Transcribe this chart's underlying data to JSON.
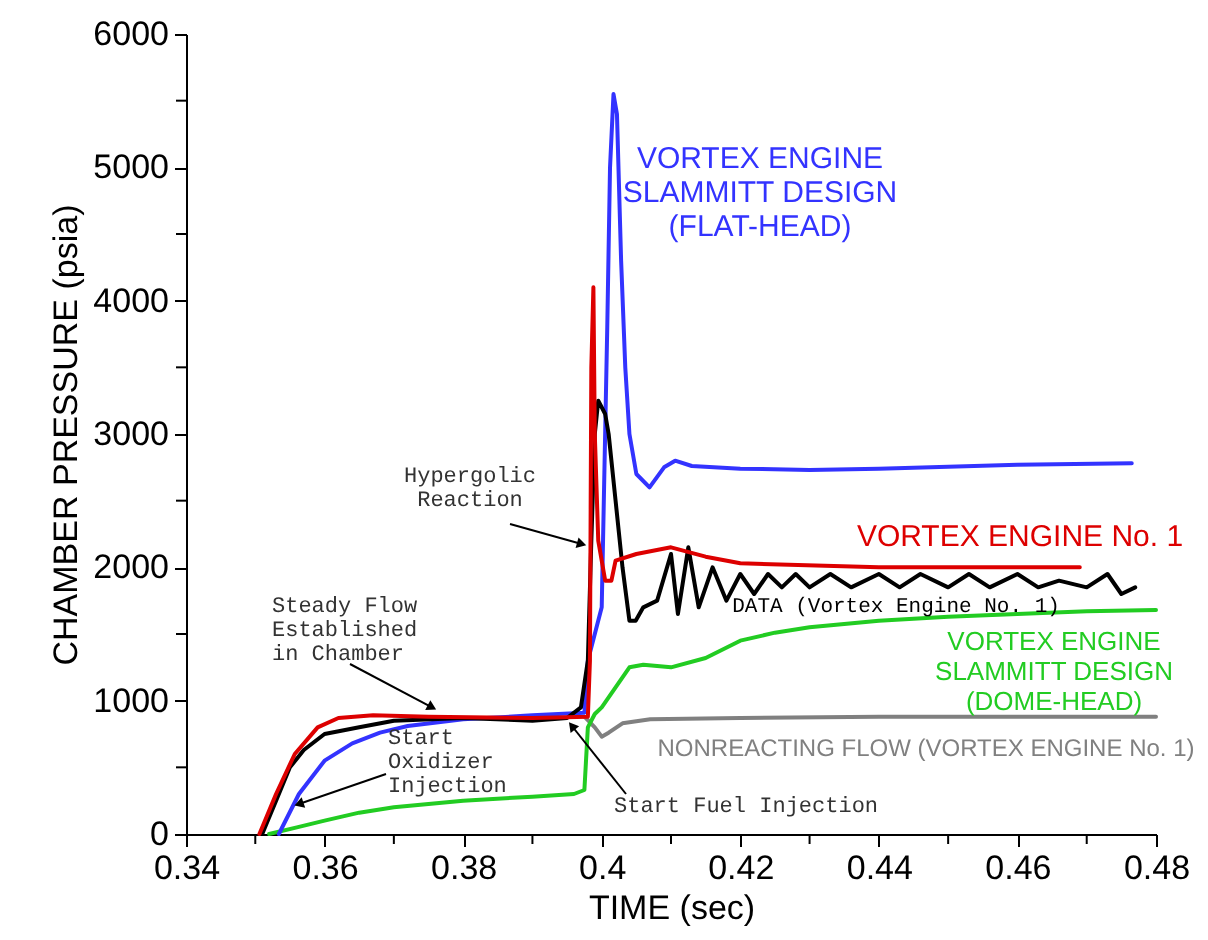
{
  "chart_data": {
    "type": "line",
    "xlabel": "TIME (sec)",
    "ylabel": "CHAMBER PRESSURE (psia)",
    "xlim": [
      0.34,
      0.48
    ],
    "ylim": [
      0,
      6000
    ],
    "xticks": [
      0.34,
      {
        "value": 0.35,
        "label": null
      },
      0.36,
      {
        "value": 0.37,
        "label": null
      },
      0.38,
      {
        "value": 0.39,
        "label": null
      },
      {
        "value": 0.4,
        "label": "0.4"
      },
      {
        "value": 0.41,
        "label": null
      },
      0.42,
      {
        "value": 0.43,
        "label": null
      },
      0.44,
      {
        "value": 0.45,
        "label": null
      },
      0.46,
      {
        "value": 0.47,
        "label": null
      },
      0.48
    ],
    "yticks": [
      0,
      {
        "value": 500,
        "label": null
      },
      1000,
      {
        "value": 1500,
        "label": null
      },
      2000,
      {
        "value": 2500,
        "label": null
      },
      3000,
      {
        "value": 3500,
        "label": null
      },
      4000,
      {
        "value": 4500,
        "label": null
      },
      5000,
      {
        "value": 5500,
        "label": null
      },
      6000
    ],
    "grid": false,
    "legend": false,
    "marker": "none",
    "line_style": "solid",
    "series": [
      {
        "name": "NONREACTING FLOW (VORTEX ENGINE No. 1)",
        "color": "#808080",
        "x": [
          0.3975,
          0.399,
          0.4,
          0.401,
          0.403,
          0.407,
          0.42,
          0.44,
          0.46,
          0.48
        ],
        "values": [
          880,
          800,
          730,
          760,
          830,
          860,
          870,
          880,
          880,
          880
        ]
      },
      {
        "name": "VORTEX ENGINE\nSLAMMITT DESIGN\n(DOME-HEAD)",
        "color": "#22cc22",
        "x": [
          0.352,
          0.356,
          0.36,
          0.365,
          0.37,
          0.38,
          0.39,
          0.396,
          0.3975,
          0.398,
          0.399,
          0.4,
          0.402,
          0.404,
          0.406,
          0.41,
          0.415,
          0.42,
          0.425,
          0.43,
          0.44,
          0.45,
          0.46,
          0.47,
          0.48
        ],
        "values": [
          0,
          50,
          100,
          160,
          200,
          250,
          280,
          300,
          330,
          800,
          900,
          950,
          1100,
          1250,
          1270,
          1250,
          1320,
          1450,
          1510,
          1550,
          1600,
          1630,
          1650,
          1670,
          1680
        ]
      },
      {
        "name": "VORTEX ENGINE\nSLAMMITT DESIGN\n(FLAT-HEAD)",
        "color": "#3333ff",
        "x": [
          0.3534,
          0.3563,
          0.36,
          0.364,
          0.368,
          0.372,
          0.38,
          0.39,
          0.3975,
          0.398,
          0.4,
          0.4008,
          0.4012,
          0.4017,
          0.4022,
          0.4028,
          0.4034,
          0.404,
          0.405,
          0.4069,
          0.409,
          0.4106,
          0.413,
          0.42,
          0.43,
          0.44,
          0.46,
          0.4765
        ],
        "values": [
          0,
          300,
          550,
          680,
          760,
          810,
          860,
          890,
          910,
          1300,
          1700,
          3800,
          5000,
          5550,
          5400,
          4300,
          3500,
          3000,
          2700,
          2600,
          2750,
          2800,
          2760,
          2740,
          2730,
          2740,
          2770,
          2780
        ]
      },
      {
        "name": "DATA (Vortex Engine No. 1)",
        "color": "#000000",
        "x": [
          0.351,
          0.353,
          0.355,
          0.357,
          0.36,
          0.365,
          0.37,
          0.38,
          0.39,
          0.395,
          0.397,
          0.398,
          0.3985,
          0.399,
          0.3995,
          0.4005,
          0.401,
          0.402,
          0.403,
          0.404,
          0.4049,
          0.406,
          0.408,
          0.41,
          0.411,
          0.4125,
          0.414,
          0.416,
          0.418,
          0.42,
          0.422,
          0.424,
          0.426,
          0.428,
          0.43,
          0.433,
          0.436,
          0.44,
          0.443,
          0.446,
          0.45,
          0.453,
          0.456,
          0.46,
          0.463,
          0.466,
          0.47,
          0.473,
          0.475,
          0.477
        ],
        "values": [
          0,
          250,
          500,
          630,
          750,
          800,
          850,
          870,
          850,
          870,
          950,
          1300,
          2200,
          3000,
          3250,
          3150,
          3000,
          2500,
          2000,
          1600,
          1600,
          1700,
          1750,
          2100,
          1650,
          2150,
          1700,
          2000,
          1750,
          1950,
          1800,
          1950,
          1850,
          1950,
          1850,
          1950,
          1850,
          1950,
          1850,
          1950,
          1850,
          1950,
          1850,
          1950,
          1850,
          1900,
          1850,
          1950,
          1800,
          1850
        ]
      },
      {
        "name": "VORTEX ENGINE No. 1",
        "color": "#dd0000",
        "x": [
          0.3506,
          0.353,
          0.3557,
          0.359,
          0.362,
          0.367,
          0.375,
          0.39,
          0.398,
          0.3983,
          0.3985,
          0.3988,
          0.399,
          0.3995,
          0.4005,
          0.4014,
          0.402,
          0.405,
          0.41,
          0.415,
          0.42,
          0.44,
          0.46,
          0.469
        ],
        "values": [
          0,
          300,
          600,
          800,
          870,
          890,
          880,
          870,
          880,
          1300,
          3500,
          4100,
          3000,
          2200,
          1900,
          1900,
          2050,
          2100,
          2150,
          2080,
          2030,
          2000,
          2000,
          2000
        ]
      }
    ],
    "annotations": [
      {
        "text": "Hypergolic\nReaction",
        "x": 0.3971,
        "y": 2175
      },
      {
        "text": "Steady Flow\nEstablished\nin Chamber",
        "x": 0.3755,
        "y": 950
      },
      {
        "text": "Start\nOxidizer\nInjection",
        "x": 0.3563,
        "y": 225
      },
      {
        "text": "Start Fuel Injection",
        "x": 0.3957,
        "y": 810
      }
    ]
  }
}
